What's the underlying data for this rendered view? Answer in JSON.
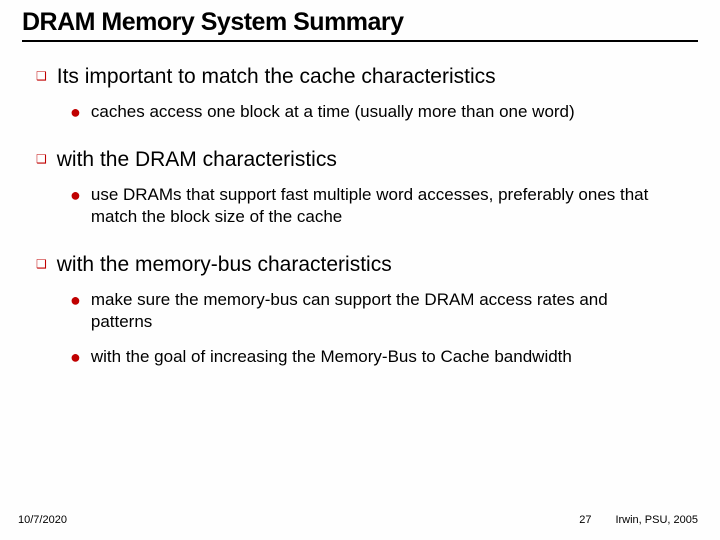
{
  "title": "DRAM Memory System Summary",
  "bullets": [
    {
      "text": "Its important to match the cache characteristics",
      "sub": [
        "caches access one block at a time (usually more than one word)"
      ]
    },
    {
      "text": "with the DRAM characteristics",
      "sub": [
        "use DRAMs that support fast multiple word accesses, preferably ones that match the block size of the cache"
      ]
    },
    {
      "text": "with the memory-bus characteristics",
      "sub": [
        "make sure the memory-bus can support the DRAM access rates and patterns",
        "with the goal of increasing the Memory-Bus to Cache bandwidth"
      ]
    }
  ],
  "footer": {
    "date": "10/7/2020",
    "page": "27",
    "attribution": "Irwin, PSU, 2005"
  },
  "glyphs": {
    "square": "❑",
    "dot": "●"
  },
  "colors": {
    "accent": "#c00000",
    "text": "#000000",
    "background": "#fefefe"
  }
}
